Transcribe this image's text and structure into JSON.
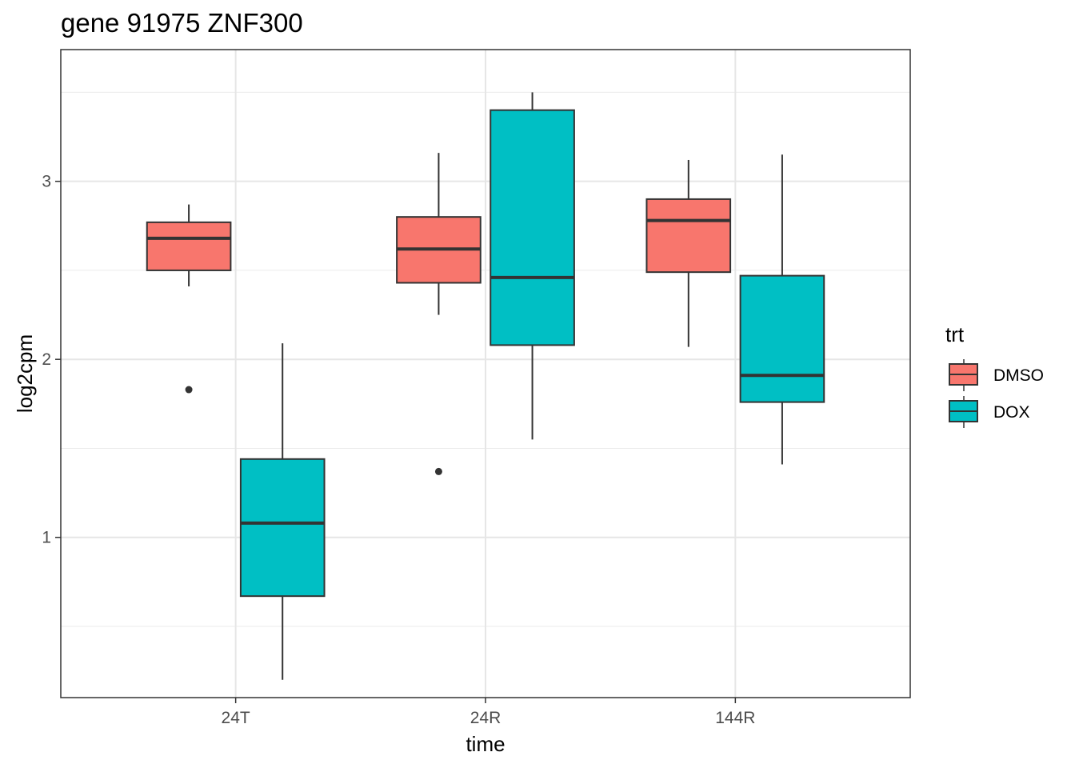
{
  "chart_data": {
    "type": "boxplot",
    "title": "gene 91975 ZNF300",
    "xlabel": "time",
    "ylabel": "log2cpm",
    "categories": [
      "24T",
      "24R",
      "144R"
    ],
    "ylim": [
      0.1,
      3.74
    ],
    "yticks": [
      1,
      2,
      3
    ],
    "grid": true,
    "legend": {
      "title": "trt",
      "position": "right",
      "entries": [
        {
          "name": "DMSO",
          "color": "#F8766D"
        },
        {
          "name": "DOX",
          "color": "#00BFC4"
        }
      ]
    },
    "series": [
      {
        "name": "DMSO",
        "color": "#F8766D",
        "boxes": [
          {
            "category": "24T",
            "whisker_low": 2.41,
            "q1": 2.5,
            "median": 2.68,
            "q3": 2.77,
            "whisker_high": 2.87,
            "outliers": [
              1.83
            ]
          },
          {
            "category": "24R",
            "whisker_low": 2.25,
            "q1": 2.43,
            "median": 2.62,
            "q3": 2.8,
            "whisker_high": 3.16,
            "outliers": [
              1.37
            ]
          },
          {
            "category": "144R",
            "whisker_low": 2.07,
            "q1": 2.49,
            "median": 2.78,
            "q3": 2.9,
            "whisker_high": 3.12,
            "outliers": []
          }
        ]
      },
      {
        "name": "DOX",
        "color": "#00BFC4",
        "boxes": [
          {
            "category": "24T",
            "whisker_low": 0.2,
            "q1": 0.67,
            "median": 1.08,
            "q3": 1.44,
            "whisker_high": 2.09,
            "outliers": []
          },
          {
            "category": "24R",
            "whisker_low": 1.55,
            "q1": 2.08,
            "median": 2.46,
            "q3": 3.4,
            "whisker_high": 3.5,
            "outliers": []
          },
          {
            "category": "144R",
            "whisker_low": 1.41,
            "q1": 1.76,
            "median": 1.91,
            "q3": 2.47,
            "whisker_high": 3.15,
            "outliers": []
          }
        ]
      }
    ]
  }
}
